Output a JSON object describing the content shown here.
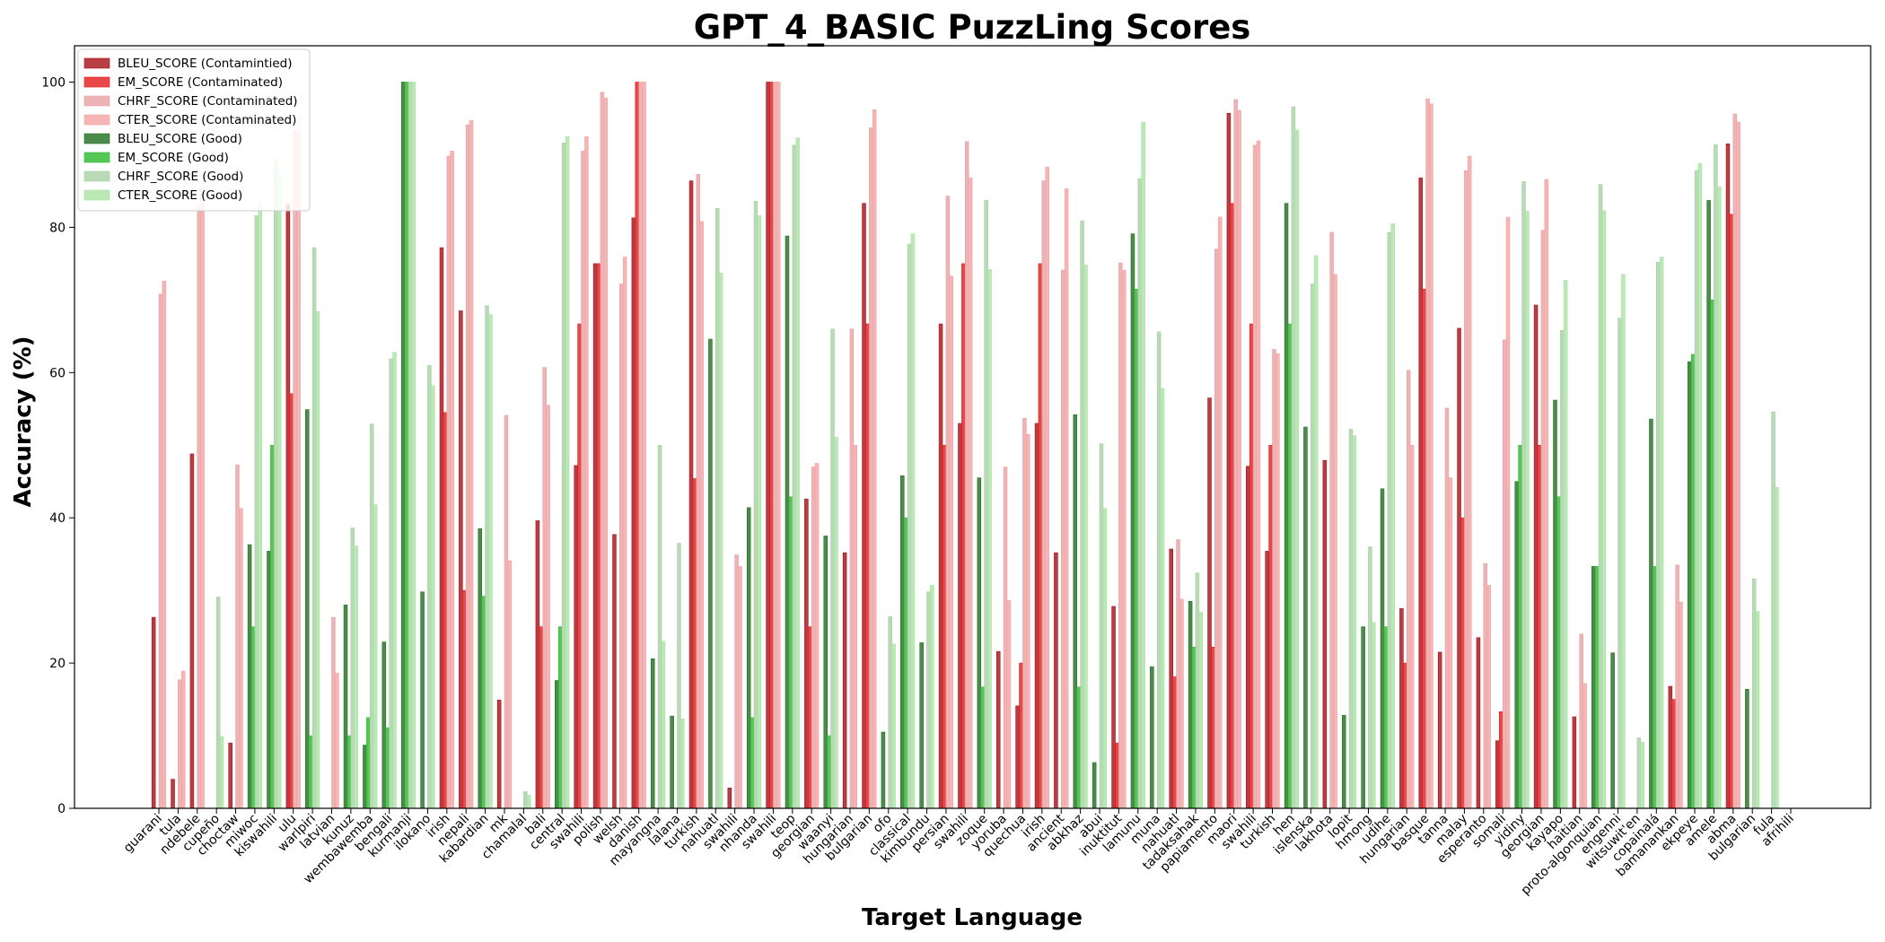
{
  "chart_data": {
    "type": "bar",
    "title": "GPT_4_BASIC PuzzLing Scores",
    "xlabel": "Target Language",
    "ylabel": "Accuracy (%)",
    "ylim": [
      0,
      105
    ],
    "yticks": [
      0,
      20,
      40,
      60,
      80,
      100
    ],
    "legend_position": "top-left",
    "series": [
      {
        "name": "BLEU_SCORE (Contamintied)",
        "color": "#a50f15",
        "alpha": 0.8
      },
      {
        "name": "EM_SCORE (Contaminated)",
        "color": "#e31a1c",
        "alpha": 0.8
      },
      {
        "name": "CHRF_SCORE (Contaminated)",
        "color": "#e8a1a4",
        "alpha": 0.8
      },
      {
        "name": "CTER_SCORE (Contaminated)",
        "color": "#f4a3a3",
        "alpha": 0.8
      },
      {
        "name": "BLEU_SCORE (Good)",
        "color": "#1f6e1f",
        "alpha": 0.8
      },
      {
        "name": "EM_SCORE (Good)",
        "color": "#2cb82c",
        "alpha": 0.8
      },
      {
        "name": "CHRF_SCORE (Good)",
        "color": "#a9cfa4",
        "alpha": 0.8
      },
      {
        "name": "CTER_SCORE (Good)",
        "color": "#a9e3a4",
        "alpha": 0.8
      }
    ],
    "categories": [
      {
        "label": "guarani",
        "group": "c",
        "values": [
          26.3,
          0,
          70.8,
          72.6
        ]
      },
      {
        "label": "tula",
        "group": "c",
        "values": [
          4,
          0,
          17.7,
          18.9
        ]
      },
      {
        "label": "ndebele",
        "group": "c",
        "values": [
          48.8,
          0,
          83,
          85
        ]
      },
      {
        "label": "cupeño",
        "group": "g",
        "values": [
          0,
          0,
          29.1,
          9.9
        ]
      },
      {
        "label": "choctaw",
        "group": "c",
        "values": [
          9,
          0,
          47.3,
          41.3
        ]
      },
      {
        "label": "miwoc",
        "group": "g",
        "values": [
          36.3,
          25,
          81.6,
          83.4
        ]
      },
      {
        "label": "kiswahili",
        "group": "g",
        "values": [
          35.4,
          50,
          89.3,
          87.3
        ]
      },
      {
        "label": "ulu",
        "group": "c",
        "values": [
          83.1,
          57.1,
          93.2,
          93.2
        ]
      },
      {
        "label": "warlpiri",
        "group": "g",
        "values": [
          54.9,
          10,
          77.2,
          68.4
        ]
      },
      {
        "label": "latvian",
        "group": "c",
        "values": [
          0,
          0,
          26.3,
          18.6
        ]
      },
      {
        "label": "kunuz",
        "group": "g",
        "values": [
          28,
          10,
          38.6,
          36.1
        ]
      },
      {
        "label": "wembawemba",
        "group": "g",
        "values": [
          8.7,
          12.5,
          52.9,
          41.8
        ]
      },
      {
        "label": "bengali",
        "group": "g",
        "values": [
          22.9,
          11.1,
          61.9,
          62.8
        ]
      },
      {
        "label": "kurmanji",
        "group": "g",
        "values": [
          100,
          100,
          100,
          100
        ]
      },
      {
        "label": "ilokano",
        "group": "g",
        "values": [
          29.8,
          0,
          61,
          58.2
        ]
      },
      {
        "label": "irish",
        "group": "c",
        "values": [
          77.2,
          54.5,
          89.8,
          90.5
        ]
      },
      {
        "label": "nepali",
        "group": "c",
        "values": [
          68.5,
          30,
          94.1,
          94.7
        ]
      },
      {
        "label": "kabardian",
        "group": "g",
        "values": [
          38.5,
          29.2,
          69.2,
          68
        ]
      },
      {
        "label": "mk",
        "group": "c",
        "values": [
          14.9,
          0,
          54.1,
          34.1
        ]
      },
      {
        "label": "chamalal",
        "group": "g",
        "values": [
          0,
          0,
          2.3,
          1.8
        ]
      },
      {
        "label": "bali",
        "group": "c",
        "values": [
          39.6,
          25,
          60.7,
          55.5
        ]
      },
      {
        "label": "central",
        "group": "g",
        "values": [
          17.6,
          25,
          91.6,
          92.5
        ]
      },
      {
        "label": "swahili",
        "group": "c",
        "values": [
          47.2,
          66.7,
          90.5,
          92.5
        ]
      },
      {
        "label": "polish",
        "group": "c",
        "values": [
          75,
          75,
          98.6,
          97.8
        ]
      },
      {
        "label": "welsh",
        "group": "c",
        "values": [
          37.7,
          0,
          72.2,
          75.9
        ]
      },
      {
        "label": "danish",
        "group": "c",
        "values": [
          81.3,
          100,
          100,
          100
        ]
      },
      {
        "label": "mayangna",
        "group": "g",
        "values": [
          20.6,
          0,
          50,
          23
        ]
      },
      {
        "label": "lalana",
        "group": "g",
        "values": [
          12.7,
          0,
          36.5,
          12.3
        ]
      },
      {
        "label": "turkish",
        "group": "c",
        "values": [
          86.4,
          45.4,
          87.3,
          80.8
        ]
      },
      {
        "label": "nahuatl",
        "group": "g",
        "values": [
          64.6,
          0,
          82.6,
          73.7
        ]
      },
      {
        "label": "swahili",
        "group": "c",
        "values": [
          2.8,
          0,
          34.9,
          33.3
        ]
      },
      {
        "label": "nhanda",
        "group": "g",
        "values": [
          41.4,
          12.5,
          83.6,
          81.6
        ]
      },
      {
        "label": "swahili",
        "group": "c",
        "values": [
          100,
          100,
          100,
          100
        ]
      },
      {
        "label": "teop",
        "group": "g",
        "values": [
          78.8,
          42.9,
          91.3,
          92.3
        ]
      },
      {
        "label": "georgian",
        "group": "c",
        "values": [
          42.6,
          25,
          47,
          47.5
        ]
      },
      {
        "label": "waanyi",
        "group": "g",
        "values": [
          37.5,
          10,
          66,
          51.1
        ]
      },
      {
        "label": "hungarian",
        "group": "c",
        "values": [
          35.2,
          0,
          66,
          50
        ]
      },
      {
        "label": "bulgarian",
        "group": "c",
        "values": [
          83.3,
          66.7,
          93.7,
          96.2
        ]
      },
      {
        "label": "ofo",
        "group": "g",
        "values": [
          10.5,
          0,
          26.4,
          22.6
        ]
      },
      {
        "label": "classical",
        "group": "g",
        "values": [
          45.8,
          40,
          77.7,
          79.1
        ]
      },
      {
        "label": "kimbundu",
        "group": "g",
        "values": [
          22.8,
          0,
          29.8,
          30.7
        ]
      },
      {
        "label": "persian",
        "group": "c",
        "values": [
          66.7,
          50,
          84.3,
          73.3
        ]
      },
      {
        "label": "swahili",
        "group": "c",
        "values": [
          53,
          75,
          91.8,
          86.8
        ]
      },
      {
        "label": "zoque",
        "group": "g",
        "values": [
          45.5,
          16.7,
          83.7,
          74.2
        ]
      },
      {
        "label": "yoruba",
        "group": "c",
        "values": [
          21.6,
          0,
          47,
          28.6
        ]
      },
      {
        "label": "quechua",
        "group": "c",
        "values": [
          14.1,
          20,
          53.7,
          51.5
        ]
      },
      {
        "label": "irish",
        "group": "c",
        "values": [
          53,
          75,
          86.4,
          88.3
        ]
      },
      {
        "label": "ancient",
        "group": "c",
        "values": [
          35.2,
          0,
          74.1,
          85.3
        ]
      },
      {
        "label": "abkhaz",
        "group": "g",
        "values": [
          54.2,
          16.7,
          80.9,
          74.8
        ]
      },
      {
        "label": "abui",
        "group": "g",
        "values": [
          6.3,
          0,
          50.2,
          41.3
        ]
      },
      {
        "label": "inuktitut",
        "group": "c",
        "values": [
          27.8,
          9,
          75.1,
          74.1
        ]
      },
      {
        "label": "lamunu",
        "group": "g",
        "values": [
          79.1,
          71.5,
          86.7,
          94.5
        ]
      },
      {
        "label": "muna",
        "group": "g",
        "values": [
          19.5,
          0,
          65.6,
          57.8
        ]
      },
      {
        "label": "nahuatl",
        "group": "c",
        "values": [
          35.7,
          18.1,
          37,
          28.8
        ]
      },
      {
        "label": "tadaksahak",
        "group": "g",
        "values": [
          28.5,
          22.2,
          32.4,
          27
        ]
      },
      {
        "label": "papiamento",
        "group": "c",
        "values": [
          56.5,
          22.2,
          77,
          81.4
        ]
      },
      {
        "label": "maori",
        "group": "c",
        "values": [
          95.7,
          83.3,
          97.6,
          96.1
        ]
      },
      {
        "label": "swahili",
        "group": "c",
        "values": [
          47.1,
          66.7,
          91.3,
          91.9
        ]
      },
      {
        "label": "turkish",
        "group": "c",
        "values": [
          35.4,
          50,
          63.2,
          62.6
        ]
      },
      {
        "label": "hen",
        "group": "g",
        "values": [
          83.3,
          66.7,
          96.6,
          93.4
        ]
      },
      {
        "label": "islenska",
        "group": "g",
        "values": [
          52.5,
          0,
          72.2,
          76.1
        ]
      },
      {
        "label": "lakhota",
        "group": "c",
        "values": [
          47.9,
          0,
          79.3,
          73.5
        ]
      },
      {
        "label": "lopit",
        "group": "g",
        "values": [
          12.8,
          0,
          52.2,
          51.3
        ]
      },
      {
        "label": "hmong",
        "group": "g",
        "values": [
          25,
          0,
          36,
          25.6
        ]
      },
      {
        "label": "udihe",
        "group": "g",
        "values": [
          44,
          25,
          79.3,
          80.5
        ]
      },
      {
        "label": "hungarian",
        "group": "c",
        "values": [
          27.5,
          20,
          60.3,
          50
        ]
      },
      {
        "label": "basque",
        "group": "c",
        "values": [
          86.8,
          71.5,
          97.7,
          97
        ]
      },
      {
        "label": "tanna",
        "group": "c",
        "values": [
          21.5,
          0,
          55.1,
          45.5
        ]
      },
      {
        "label": "malay",
        "group": "c",
        "values": [
          66.1,
          40,
          87.8,
          89.8
        ]
      },
      {
        "label": "esperanto",
        "group": "c",
        "values": [
          23.5,
          0,
          33.7,
          30.7
        ]
      },
      {
        "label": "somali",
        "group": "c",
        "values": [
          9.3,
          13.3,
          64.5,
          81.4
        ]
      },
      {
        "label": "yidiny",
        "group": "g",
        "values": [
          45,
          50,
          86.3,
          82.2
        ]
      },
      {
        "label": "georgian",
        "group": "c",
        "values": [
          69.3,
          50,
          79.6,
          86.6
        ]
      },
      {
        "label": "kayapo",
        "group": "g",
        "values": [
          56.2,
          42.9,
          65.8,
          72.7
        ]
      },
      {
        "label": "haitian",
        "group": "c",
        "values": [
          12.6,
          0,
          24,
          17.2
        ]
      },
      {
        "label": "proto-algonquian",
        "group": "g",
        "values": [
          33.3,
          33.3,
          85.9,
          82.3
        ]
      },
      {
        "label": "engenni",
        "group": "g",
        "values": [
          21.4,
          0,
          67.5,
          73.5
        ]
      },
      {
        "label": "witsuwit'en",
        "group": "g",
        "values": [
          0,
          0,
          9.7,
          9.1
        ]
      },
      {
        "label": "copainalá",
        "group": "g",
        "values": [
          53.6,
          33.3,
          75.2,
          75.9
        ]
      },
      {
        "label": "bamanankan",
        "group": "c",
        "values": [
          16.8,
          15,
          33.5,
          28.4
        ]
      },
      {
        "label": "ekpeye",
        "group": "g",
        "values": [
          61.5,
          62.5,
          87.8,
          88.8
        ]
      },
      {
        "label": "amele",
        "group": "g",
        "values": [
          83.7,
          70,
          91.4,
          85.6
        ]
      },
      {
        "label": "abma",
        "group": "c",
        "values": [
          91.5,
          81.8,
          95.6,
          94.5
        ]
      },
      {
        "label": "bulgarian",
        "group": "g",
        "values": [
          16.4,
          0,
          31.6,
          27.1
        ]
      },
      {
        "label": "fula",
        "group": "g",
        "values": [
          0,
          0,
          54.6,
          44.2
        ]
      },
      {
        "label": "afrihili",
        "group": "g",
        "values": [
          0,
          0,
          0,
          0
        ]
      }
    ]
  }
}
